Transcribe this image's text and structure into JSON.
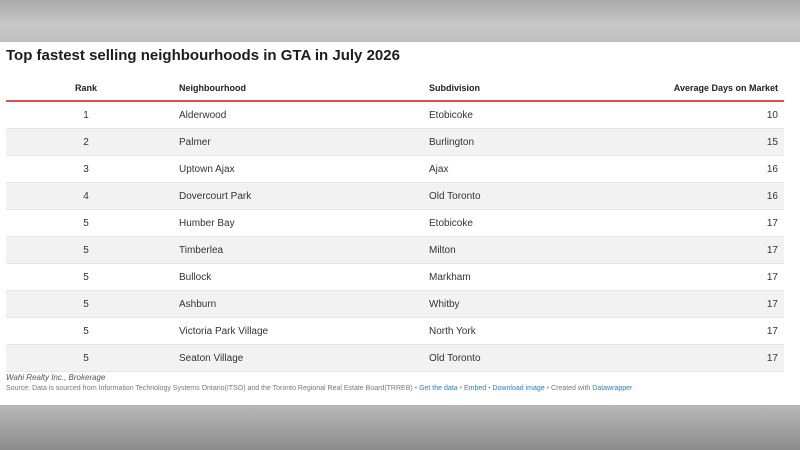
{
  "chart_data": {
    "type": "table",
    "title": "Top fastest selling neighbourhoods in GTA in July 2026",
    "columns": [
      "Rank",
      "Neighbourhood",
      "Subdivision",
      "Average Days on Market"
    ],
    "rows": [
      {
        "rank": "1",
        "neighbourhood": "Alderwood",
        "subdivision": "Etobicoke",
        "days": "10"
      },
      {
        "rank": "2",
        "neighbourhood": "Palmer",
        "subdivision": "Burlington",
        "days": "15"
      },
      {
        "rank": "3",
        "neighbourhood": "Uptown Ajax",
        "subdivision": "Ajax",
        "days": "16"
      },
      {
        "rank": "4",
        "neighbourhood": "Dovercourt Park",
        "subdivision": "Old Toronto",
        "days": "16"
      },
      {
        "rank": "5",
        "neighbourhood": "Humber Bay",
        "subdivision": "Etobicoke",
        "days": "17"
      },
      {
        "rank": "5",
        "neighbourhood": "Timberlea",
        "subdivision": "Milton",
        "days": "17"
      },
      {
        "rank": "5",
        "neighbourhood": "Bullock",
        "subdivision": "Markham",
        "days": "17"
      },
      {
        "rank": "5",
        "neighbourhood": "Ashburn",
        "subdivision": "Whitby",
        "days": "17"
      },
      {
        "rank": "5",
        "neighbourhood": "Victoria Park Village",
        "subdivision": "North York",
        "days": "17"
      },
      {
        "rank": "5",
        "neighbourhood": "Seaton Village",
        "subdivision": "Old Toronto",
        "days": "17"
      }
    ]
  },
  "credit": "Wahi Realty Inc., Brokerage",
  "footer": {
    "source": "Source: Data is sourced from Information Technology Systems Ontario(ITSO) and the Toronto Regional Real Estate Board(TRREB)",
    "separator": "•",
    "get_data": "Get the data",
    "embed": "Embed",
    "download": "Download image",
    "created_with": "Created with",
    "tool": "Datawrapper"
  },
  "colors": {
    "header_rule": "#d9534f",
    "link": "#2a7fc0",
    "stripe": "#f2f2f2"
  }
}
